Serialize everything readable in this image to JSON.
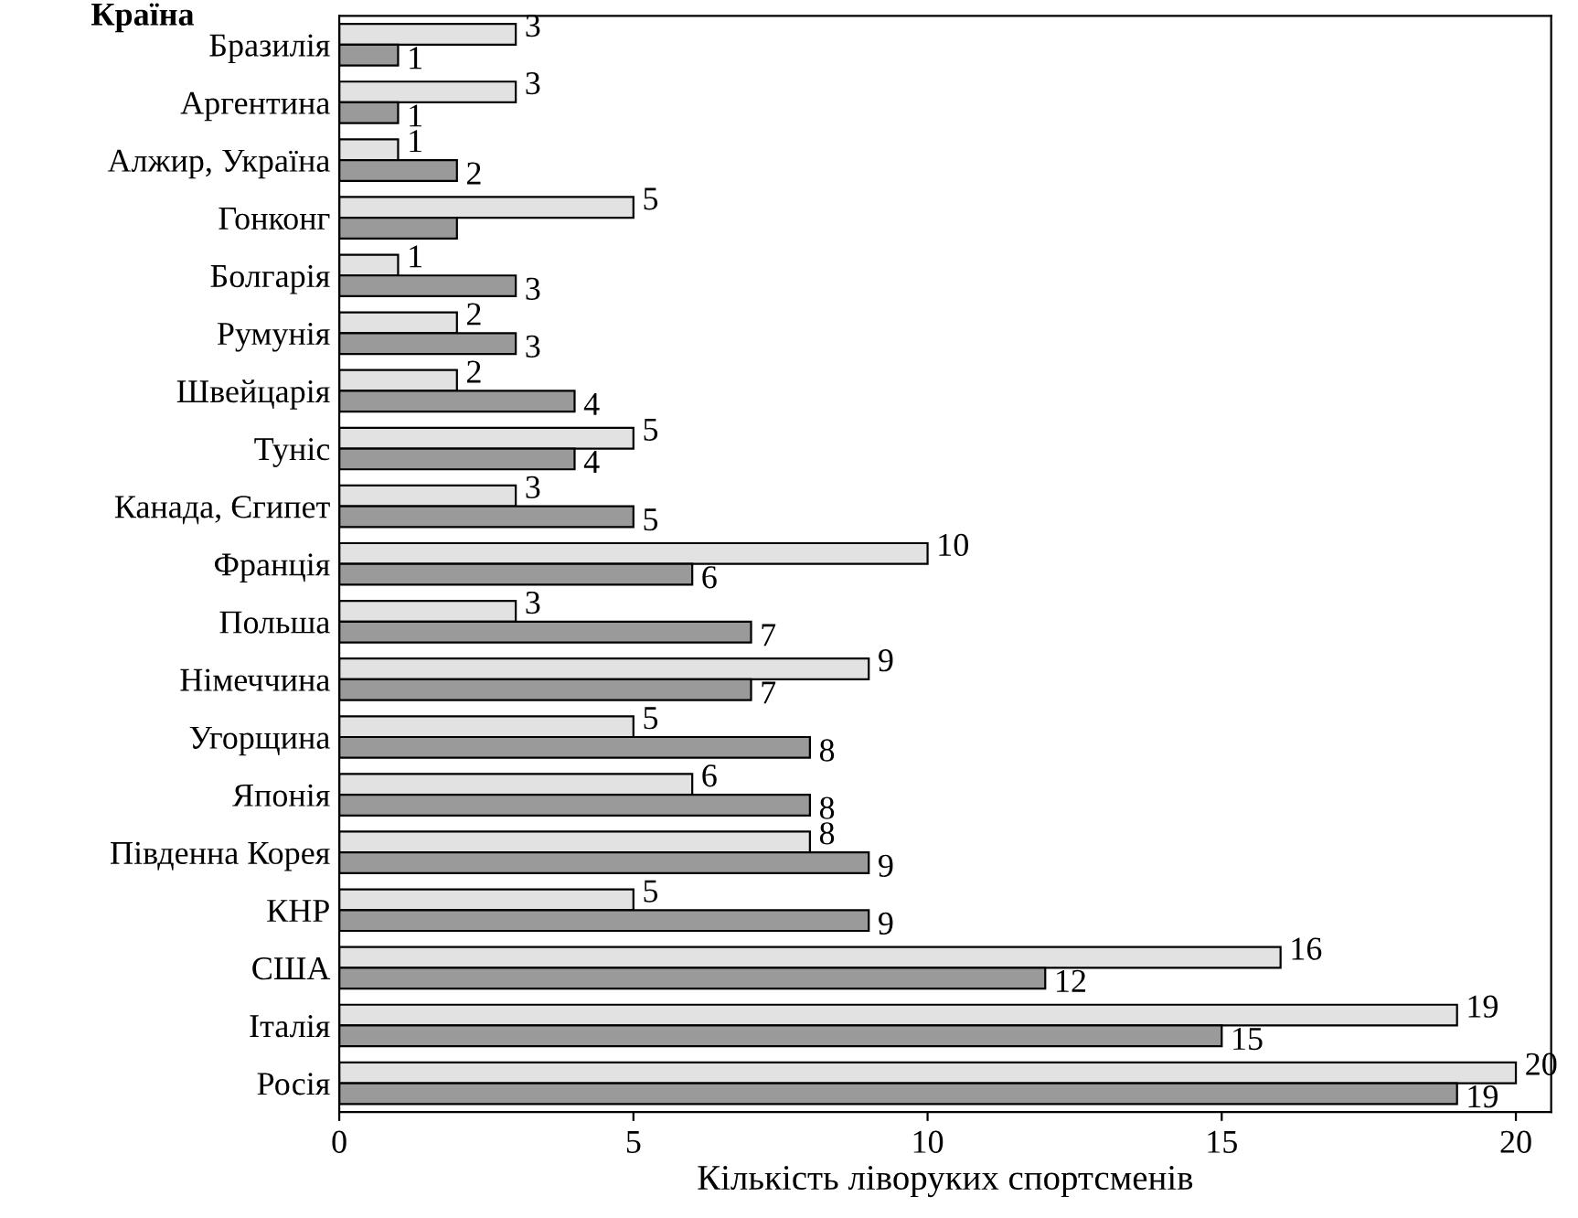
{
  "chart_data": {
    "type": "bar",
    "orientation": "horizontal",
    "xlabel": "Кількість ліворуких спортсменів",
    "ylabel": "Країна",
    "categories": [
      "Бразилія",
      "Аргентина",
      "Алжир, Україна",
      "Гонконг",
      "Болгарія",
      "Румунія",
      "Швейцарія",
      "Туніс",
      "Канада, Єгипет",
      "Франція",
      "Польша",
      "Німеччина",
      "Угорщина",
      "Японія",
      "Південна Корея",
      "КНР",
      "США",
      "Італія",
      "Росія"
    ],
    "series": [
      {
        "color": "#e2e2e2",
        "values": [
          3,
          3,
          1,
          5,
          1,
          2,
          2,
          5,
          3,
          10,
          3,
          9,
          5,
          6,
          8,
          5,
          16,
          19,
          20
        ],
        "value_labels": [
          "3",
          "3",
          "1",
          "5",
          "1",
          "2",
          "2",
          "5",
          "3",
          "10",
          "3",
          "9",
          "5",
          "6",
          "8",
          "5",
          "16",
          "19",
          "20"
        ]
      },
      {
        "color": "#9a9a9a",
        "values": [
          1,
          1,
          2,
          2,
          3,
          3,
          4,
          4,
          5,
          6,
          7,
          7,
          8,
          8,
          9,
          9,
          12,
          15,
          19
        ],
        "value_labels": [
          "1",
          "1",
          "2",
          null,
          "3",
          "3",
          "4",
          "4",
          "5",
          "6",
          "7",
          "7",
          "8",
          "8",
          "9",
          "9",
          "12",
          "15",
          "19"
        ]
      }
    ],
    "xlim": [
      0,
      20.6
    ],
    "xticks": [
      0,
      5,
      10,
      15,
      20
    ],
    "grid": false,
    "legend": false
  }
}
